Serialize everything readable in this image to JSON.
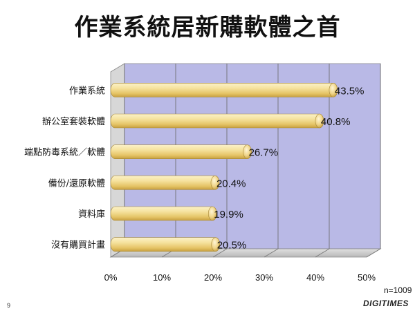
{
  "chart_data": {
    "type": "bar",
    "orientation": "horizontal",
    "title": "作業系統居新購軟體之首",
    "categories": [
      "作業系統",
      "辦公室套裝軟體",
      "端點防毒系統／軟體",
      "備份/還原軟體",
      "資料庫",
      "沒有購買計畫"
    ],
    "values": [
      43.5,
      40.8,
      26.7,
      20.4,
      19.9,
      20.5
    ],
    "value_labels": [
      "43.5%",
      "40.8%",
      "26.7%",
      "20.4%",
      "19.9%",
      "20.5%"
    ],
    "xlim": [
      0,
      50
    ],
    "xticks": [
      0,
      10,
      20,
      30,
      40,
      50
    ],
    "xtick_labels": [
      "0%",
      "10%",
      "20%",
      "30%",
      "40%",
      "50%"
    ],
    "grid": true,
    "bar_color": "#F2DB8C",
    "plot_background": "#B9B9E6"
  },
  "note": "n=1009",
  "page_number": "9",
  "brand": "DIGITIMES"
}
